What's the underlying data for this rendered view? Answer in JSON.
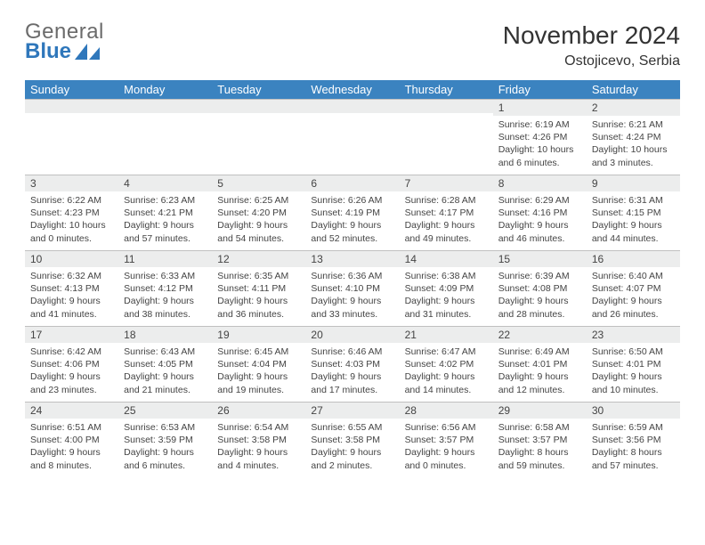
{
  "logo": {
    "top": "General",
    "bottom": "Blue",
    "tri_color": "#2f77bb"
  },
  "title": "November 2024",
  "subtitle": "Ostojicevo, Serbia",
  "colors": {
    "header_bg": "#3b83c0",
    "header_fg": "#ffffff",
    "daynum_bg": "#eceded",
    "text": "#444444",
    "border": "#c0c0c0"
  },
  "weekdays": [
    "Sunday",
    "Monday",
    "Tuesday",
    "Wednesday",
    "Thursday",
    "Friday",
    "Saturday"
  ],
  "weeks": [
    [
      null,
      null,
      null,
      null,
      null,
      {
        "n": "1",
        "sr": "6:19 AM",
        "ss": "4:26 PM",
        "dl": "10 hours and 6 minutes."
      },
      {
        "n": "2",
        "sr": "6:21 AM",
        "ss": "4:24 PM",
        "dl": "10 hours and 3 minutes."
      }
    ],
    [
      {
        "n": "3",
        "sr": "6:22 AM",
        "ss": "4:23 PM",
        "dl": "10 hours and 0 minutes."
      },
      {
        "n": "4",
        "sr": "6:23 AM",
        "ss": "4:21 PM",
        "dl": "9 hours and 57 minutes."
      },
      {
        "n": "5",
        "sr": "6:25 AM",
        "ss": "4:20 PM",
        "dl": "9 hours and 54 minutes."
      },
      {
        "n": "6",
        "sr": "6:26 AM",
        "ss": "4:19 PM",
        "dl": "9 hours and 52 minutes."
      },
      {
        "n": "7",
        "sr": "6:28 AM",
        "ss": "4:17 PM",
        "dl": "9 hours and 49 minutes."
      },
      {
        "n": "8",
        "sr": "6:29 AM",
        "ss": "4:16 PM",
        "dl": "9 hours and 46 minutes."
      },
      {
        "n": "9",
        "sr": "6:31 AM",
        "ss": "4:15 PM",
        "dl": "9 hours and 44 minutes."
      }
    ],
    [
      {
        "n": "10",
        "sr": "6:32 AM",
        "ss": "4:13 PM",
        "dl": "9 hours and 41 minutes."
      },
      {
        "n": "11",
        "sr": "6:33 AM",
        "ss": "4:12 PM",
        "dl": "9 hours and 38 minutes."
      },
      {
        "n": "12",
        "sr": "6:35 AM",
        "ss": "4:11 PM",
        "dl": "9 hours and 36 minutes."
      },
      {
        "n": "13",
        "sr": "6:36 AM",
        "ss": "4:10 PM",
        "dl": "9 hours and 33 minutes."
      },
      {
        "n": "14",
        "sr": "6:38 AM",
        "ss": "4:09 PM",
        "dl": "9 hours and 31 minutes."
      },
      {
        "n": "15",
        "sr": "6:39 AM",
        "ss": "4:08 PM",
        "dl": "9 hours and 28 minutes."
      },
      {
        "n": "16",
        "sr": "6:40 AM",
        "ss": "4:07 PM",
        "dl": "9 hours and 26 minutes."
      }
    ],
    [
      {
        "n": "17",
        "sr": "6:42 AM",
        "ss": "4:06 PM",
        "dl": "9 hours and 23 minutes."
      },
      {
        "n": "18",
        "sr": "6:43 AM",
        "ss": "4:05 PM",
        "dl": "9 hours and 21 minutes."
      },
      {
        "n": "19",
        "sr": "6:45 AM",
        "ss": "4:04 PM",
        "dl": "9 hours and 19 minutes."
      },
      {
        "n": "20",
        "sr": "6:46 AM",
        "ss": "4:03 PM",
        "dl": "9 hours and 17 minutes."
      },
      {
        "n": "21",
        "sr": "6:47 AM",
        "ss": "4:02 PM",
        "dl": "9 hours and 14 minutes."
      },
      {
        "n": "22",
        "sr": "6:49 AM",
        "ss": "4:01 PM",
        "dl": "9 hours and 12 minutes."
      },
      {
        "n": "23",
        "sr": "6:50 AM",
        "ss": "4:01 PM",
        "dl": "9 hours and 10 minutes."
      }
    ],
    [
      {
        "n": "24",
        "sr": "6:51 AM",
        "ss": "4:00 PM",
        "dl": "9 hours and 8 minutes."
      },
      {
        "n": "25",
        "sr": "6:53 AM",
        "ss": "3:59 PM",
        "dl": "9 hours and 6 minutes."
      },
      {
        "n": "26",
        "sr": "6:54 AM",
        "ss": "3:58 PM",
        "dl": "9 hours and 4 minutes."
      },
      {
        "n": "27",
        "sr": "6:55 AM",
        "ss": "3:58 PM",
        "dl": "9 hours and 2 minutes."
      },
      {
        "n": "28",
        "sr": "6:56 AM",
        "ss": "3:57 PM",
        "dl": "9 hours and 0 minutes."
      },
      {
        "n": "29",
        "sr": "6:58 AM",
        "ss": "3:57 PM",
        "dl": "8 hours and 59 minutes."
      },
      {
        "n": "30",
        "sr": "6:59 AM",
        "ss": "3:56 PM",
        "dl": "8 hours and 57 minutes."
      }
    ]
  ],
  "labels": {
    "sunrise": "Sunrise:",
    "sunset": "Sunset:",
    "daylight": "Daylight:"
  }
}
